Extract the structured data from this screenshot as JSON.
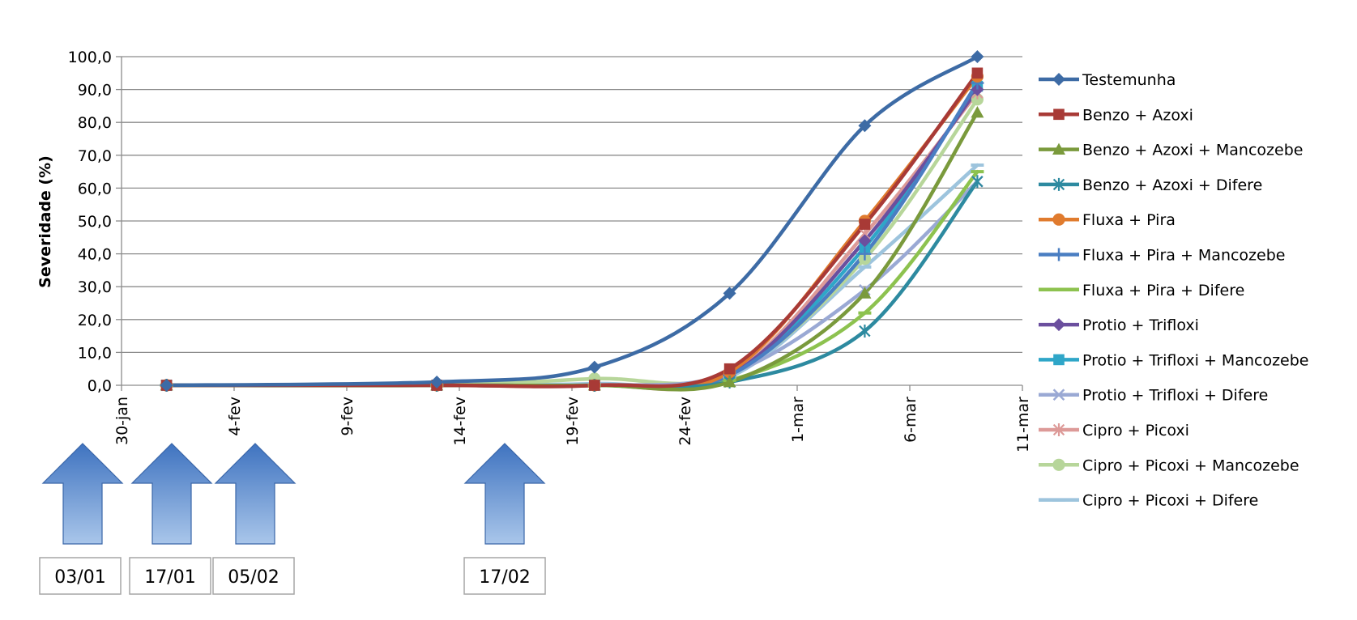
{
  "chart_data": {
    "type": "line",
    "xlabel": "",
    "ylabel": "Severidade (%)",
    "ylim": [
      0,
      100
    ],
    "yticks": [
      "0,0",
      "10,0",
      "20,0",
      "30,0",
      "40,0",
      "50,0",
      "60,0",
      "70,0",
      "80,0",
      "90,0",
      "100,0"
    ],
    "xlim": [
      "2015-01-30",
      "2015-03-11"
    ],
    "xticks": [
      {
        "date": "2015-01-30",
        "label": "30-jan"
      },
      {
        "date": "2015-02-04",
        "label": "4-fev"
      },
      {
        "date": "2015-02-09",
        "label": "9-fev"
      },
      {
        "date": "2015-02-14",
        "label": "14-fev"
      },
      {
        "date": "2015-02-19",
        "label": "19-fev"
      },
      {
        "date": "2015-02-24",
        "label": "24-fev"
      },
      {
        "date": "2015-03-01",
        "label": "1-mar"
      },
      {
        "date": "2015-03-06",
        "label": "6-mar"
      },
      {
        "date": "2015-03-11",
        "label": "11-mar"
      }
    ],
    "grid": true,
    "legend_position": "right",
    "x": [
      "2015-02-01",
      "2015-02-13",
      "2015-02-20",
      "2015-02-26",
      "2015-03-04",
      "2015-03-09"
    ],
    "series": [
      {
        "name": "Testemunha",
        "color": "#3d6ba5",
        "marker": "diamond",
        "values": [
          0.0,
          1.0,
          5.5,
          28.0,
          79.0,
          100.0
        ]
      },
      {
        "name": "Benzo + Azoxi",
        "color": "#a83a36",
        "marker": "square",
        "values": [
          0.0,
          0.0,
          0.0,
          5.0,
          49.0,
          95.0
        ]
      },
      {
        "name": "Benzo + Azoxi + Mancozebe",
        "color": "#7a9a3c",
        "marker": "triangle",
        "values": [
          0.0,
          0.0,
          0.0,
          1.0,
          28.0,
          83.0
        ]
      },
      {
        "name": "Benzo + Azoxi + Difere",
        "color": "#2d8aa0",
        "marker": "star",
        "values": [
          0.0,
          0.0,
          0.0,
          1.0,
          16.5,
          62.0
        ]
      },
      {
        "name": "Fluxa + Pira",
        "color": "#e07b2e",
        "marker": "circle",
        "values": [
          0.0,
          0.0,
          0.0,
          4.0,
          50.0,
          94.0
        ]
      },
      {
        "name": "Fluxa + Pira + Mancozebe",
        "color": "#4a7ec2",
        "marker": "plus",
        "values": [
          0.0,
          0.0,
          0.0,
          3.0,
          40.0,
          92.0
        ]
      },
      {
        "name": "Fluxa + Pira + Difere",
        "color": "#8dc24f",
        "marker": "dash",
        "values": [
          0.0,
          0.0,
          0.0,
          1.5,
          22.0,
          65.0
        ]
      },
      {
        "name": "Protio + Trifloxi",
        "color": "#6b4f9e",
        "marker": "diamond",
        "values": [
          0.0,
          0.0,
          0.0,
          3.0,
          44.0,
          90.0
        ]
      },
      {
        "name": "Protio + Trifloxi + Mancozebe",
        "color": "#2fa6c8",
        "marker": "square",
        "values": [
          0.0,
          0.0,
          0.0,
          3.0,
          42.0,
          91.0
        ]
      },
      {
        "name": "Protio + Trifloxi + Difere",
        "color": "#9aa9d4",
        "marker": "x",
        "values": [
          0.0,
          0.0,
          0.0,
          3.5,
          29.0,
          62.0
        ]
      },
      {
        "name": "Cipro + Picoxi",
        "color": "#dd9a98",
        "marker": "star",
        "values": [
          0.0,
          0.0,
          0.0,
          3.0,
          46.0,
          89.0
        ]
      },
      {
        "name": "Cipro + Picoxi + Mancozebe",
        "color": "#b7d69a",
        "marker": "circle",
        "values": [
          0.0,
          0.0,
          2.0,
          3.5,
          38.5,
          87.0
        ]
      },
      {
        "name": "Cipro + Picoxi + Difere",
        "color": "#9dc4dd",
        "marker": "dash",
        "values": [
          0.0,
          0.0,
          0.5,
          2.5,
          36.0,
          67.0
        ]
      }
    ],
    "annotations": [
      {
        "label": "03/01"
      },
      {
        "label": "17/01"
      },
      {
        "label": "05/02"
      },
      {
        "label": "17/02"
      }
    ]
  }
}
